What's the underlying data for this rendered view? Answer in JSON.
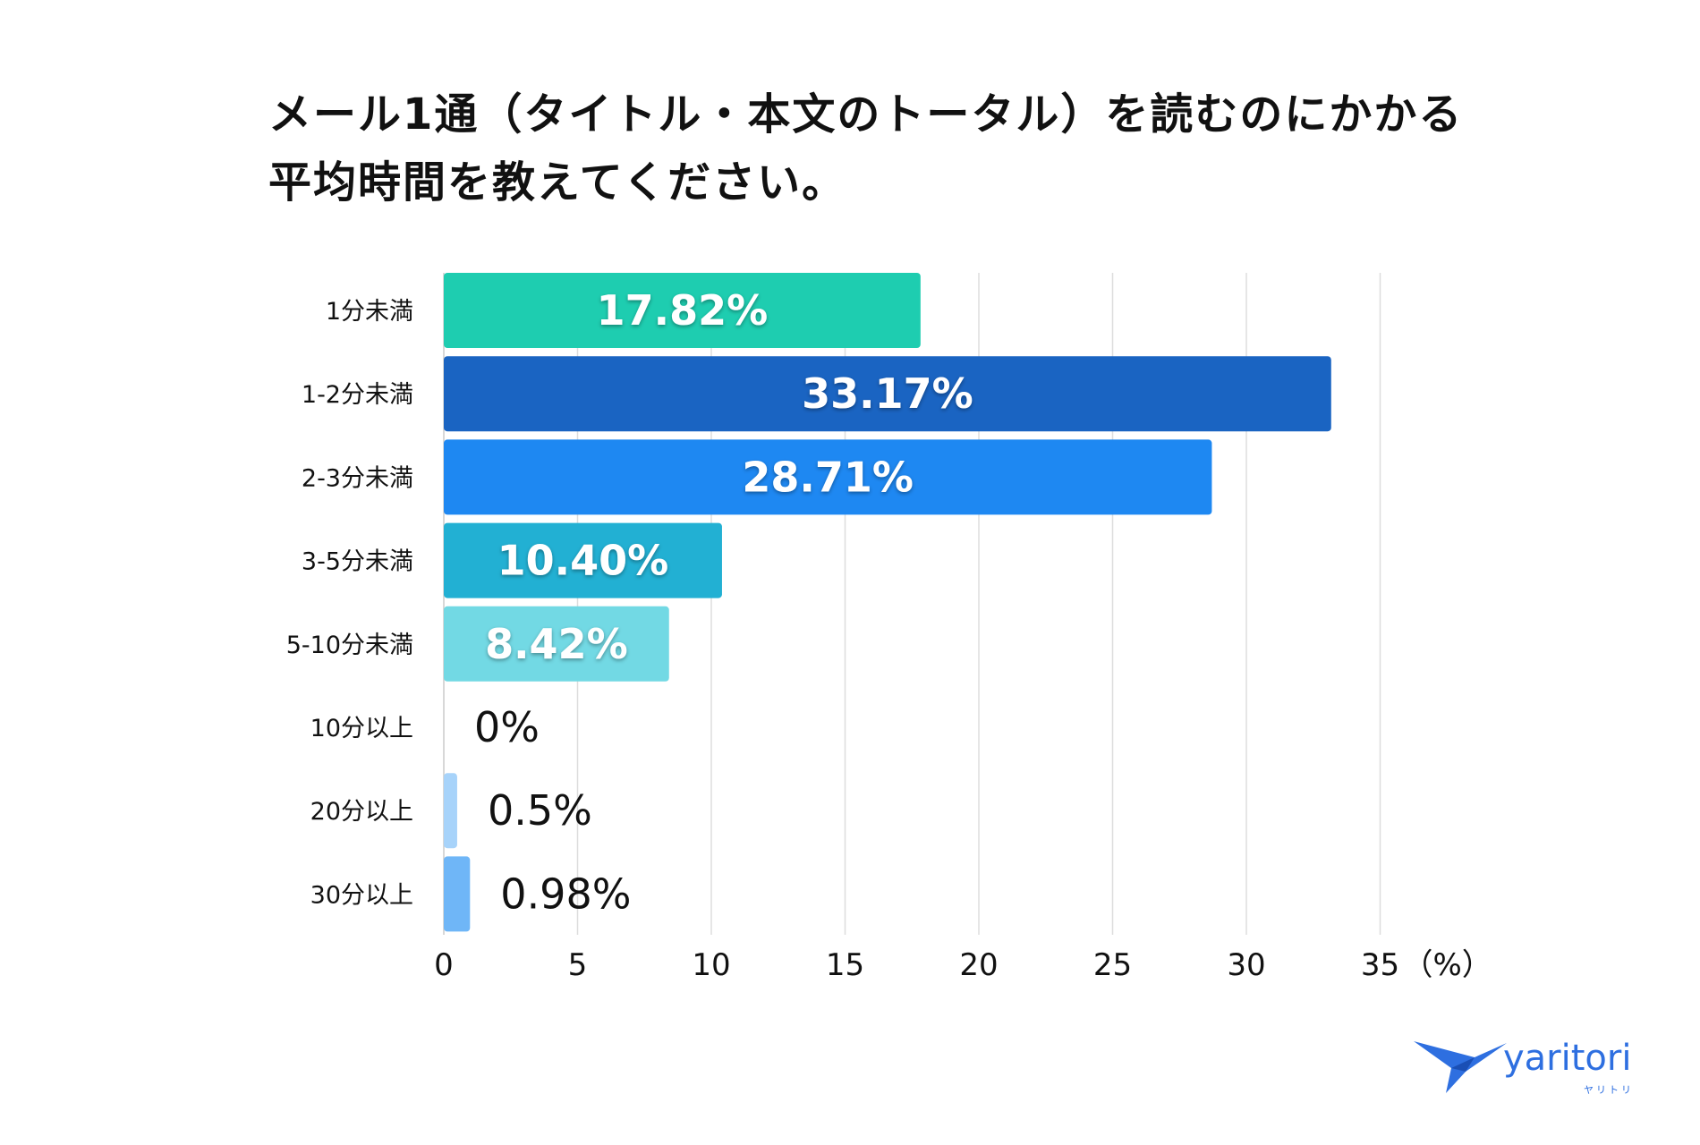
{
  "title": {
    "line1": "メール1通（タイトル・本文のトータル）を読むのにかかる",
    "line2": "平均時間を教えてください。"
  },
  "chart_data": {
    "type": "bar",
    "orientation": "horizontal",
    "title": "メール1通（タイトル・本文のトータル）を読むのにかかる平均時間を教えてください。",
    "categories": [
      "1分未満",
      "1-2分未満",
      "2-3分未満",
      "3-5分未満",
      "5-10分未満",
      "10分以上",
      "20分以上",
      "30分以上"
    ],
    "values": [
      17.82,
      33.17,
      28.71,
      10.4,
      8.42,
      0,
      0.5,
      0.98
    ],
    "value_labels": [
      "17.82%",
      "33.17%",
      "28.71%",
      "10.40%",
      "8.42%",
      "0%",
      "0.5%",
      "0.98%"
    ],
    "label_inside": [
      true,
      true,
      true,
      true,
      true,
      false,
      false,
      false
    ],
    "colors": [
      "#1ecdb0",
      "#1a64c2",
      "#1e88f2",
      "#22b0d3",
      "#72d9e4",
      "#9ccdf6",
      "#a7d3fa",
      "#6fb6f7"
    ],
    "xticks": [
      "0",
      "5",
      "10",
      "15",
      "20",
      "25",
      "30",
      "35"
    ],
    "xtick_values": [
      0,
      5,
      10,
      15,
      20,
      25,
      30,
      35
    ],
    "xunit": "（%）",
    "xlim": [
      0,
      35
    ],
    "grid": true
  },
  "logo": {
    "name": "yaritori",
    "sub": "ヤリトリ",
    "color": "#2e6fe0"
  }
}
